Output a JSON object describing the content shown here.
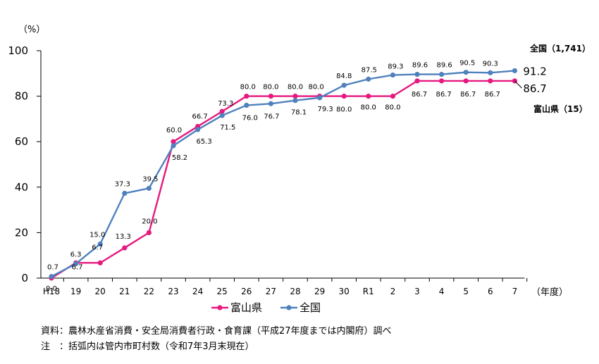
{
  "chart_data": {
    "type": "line",
    "y_unit": "（%）",
    "x_unit": "（年度）",
    "ylim": [
      0,
      100
    ],
    "yticks": [
      "0",
      "20",
      "40",
      "60",
      "80",
      "100"
    ],
    "categories": [
      "H18",
      "19",
      "20",
      "21",
      "22",
      "23",
      "24",
      "25",
      "26",
      "27",
      "28",
      "29",
      "30",
      "R1",
      "2",
      "3",
      "4",
      "5",
      "6",
      "7"
    ],
    "grid": false,
    "legend_position": "bottom",
    "series": [
      {
        "name": "富山県",
        "color": "#e6197f",
        "values": [
          0.0,
          6.7,
          6.7,
          13.3,
          20.0,
          60.0,
          66.7,
          73.3,
          80.0,
          80.0,
          80.0,
          80.0,
          80.0,
          80.0,
          80.0,
          86.7,
          86.7,
          86.7,
          86.7,
          86.7
        ],
        "labels": [
          "0.0",
          "6.7",
          "6.7",
          "13.3",
          "20.0",
          "60.0",
          "66.7",
          "73.3",
          "80.0",
          "80.0",
          "80.0",
          "80.0",
          "80.0",
          "80.0",
          "80.0",
          "86.7",
          "86.7",
          "86.7",
          "86.7",
          ""
        ],
        "end_label": "86.7",
        "end_name": "富山県（15）"
      },
      {
        "name": "全国",
        "color": "#4f81bd",
        "values": [
          0.7,
          6.3,
          15.0,
          37.3,
          39.5,
          58.2,
          65.3,
          71.5,
          76.0,
          76.7,
          78.1,
          79.3,
          84.8,
          87.5,
          89.3,
          89.6,
          89.6,
          90.5,
          90.3,
          91.2
        ],
        "labels": [
          "0.7",
          "6.3",
          "15.0",
          "37.3",
          "39.5",
          "58.2",
          "65.3",
          "71.5",
          "76.0",
          "76.7",
          "78.1",
          "79.3",
          "84.8",
          "87.5",
          "89.3",
          "89.6",
          "89.6",
          "90.5",
          "90.3",
          ""
        ],
        "end_label": "91.2",
        "end_name": "全国（1,741）"
      }
    ]
  },
  "notes": {
    "source": "資料：農林水産省消費・安全局消費者行政・食育課（平成27年度までは内閣府）調べ",
    "note": "注　：括弧内は管内市町村数（令和7年3月末現在）"
  }
}
